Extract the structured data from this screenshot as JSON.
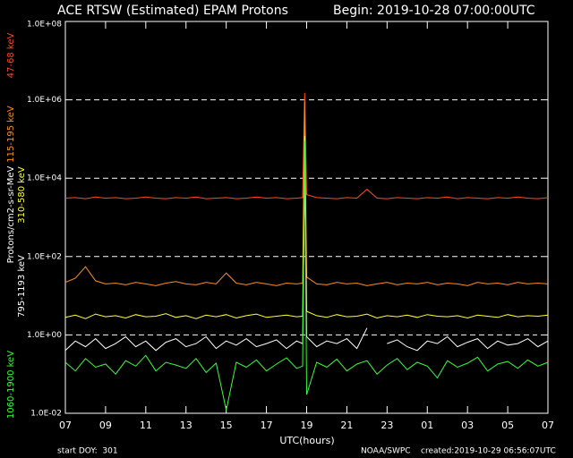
{
  "chart_data": {
    "type": "line",
    "title": "ACE RTSW (Estimated) EPAM Protons",
    "subtitle": "Begin: 2019-10-28 07:00:00UTC",
    "x_label": "UTC(hours)",
    "y_label": "Protons/cm2-s-sr-MeV",
    "annotations": [
      "start DOY:  301",
      "NOAA/SWPC",
      "created:2019-10-29 06:56:07UTC"
    ],
    "log_y": true,
    "grid": true,
    "xlim": [
      0,
      24
    ],
    "xticks": [
      {
        "value": 0,
        "label": "07"
      },
      {
        "value": 2,
        "label": "09"
      },
      {
        "value": 4,
        "label": "11"
      },
      {
        "value": 6,
        "label": "13"
      },
      {
        "value": 8,
        "label": "15"
      },
      {
        "value": 10,
        "label": "17"
      },
      {
        "value": 12,
        "label": "19"
      },
      {
        "value": 14,
        "label": "21"
      },
      {
        "value": 16,
        "label": "23"
      },
      {
        "value": 18,
        "label": "01"
      },
      {
        "value": 20,
        "label": "03"
      },
      {
        "value": 22,
        "label": "05"
      },
      {
        "value": 24,
        "label": "07"
      }
    ],
    "ylim": [
      0.01,
      100000000
    ],
    "yticks": [
      {
        "value": 0.01,
        "label": "1.0E-02"
      },
      {
        "value": 1,
        "label": "1.0E+00"
      },
      {
        "value": 100,
        "label": "1.0E+02"
      },
      {
        "value": 10000,
        "label": "1.0E+04"
      },
      {
        "value": 1000000,
        "label": "1.0E+06"
      },
      {
        "value": 100000000,
        "label": "1.0E+08"
      }
    ],
    "x": [
      0,
      0.5,
      1,
      1.5,
      2,
      2.5,
      3,
      3.5,
      4,
      4.5,
      5,
      5.5,
      6,
      6.5,
      7,
      7.5,
      8,
      8.5,
      9,
      9.5,
      10,
      10.5,
      11,
      11.5,
      11.8,
      11.9,
      12,
      12.5,
      13,
      13.5,
      14,
      14.5,
      15,
      15.5,
      16,
      16.5,
      17,
      17.5,
      18,
      18.5,
      19,
      19.5,
      20,
      20.5,
      21,
      21.5,
      22,
      22.5,
      23,
      23.5,
      24
    ],
    "series": [
      {
        "name": "47-68 keV",
        "color": "#ff4a1c",
        "values": [
          3100,
          3200,
          3000,
          3300,
          3100,
          3200,
          3000,
          3100,
          3300,
          3100,
          3000,
          3200,
          3100,
          3300,
          3000,
          3100,
          3200,
          3000,
          3100,
          3300,
          3100,
          3200,
          3000,
          3100,
          3200,
          1500000,
          3800,
          3200,
          3100,
          3000,
          3200,
          3100,
          5200,
          3100,
          3000,
          3200,
          3100,
          3000,
          3200,
          3100,
          3300,
          3000,
          3200,
          3100,
          3000,
          3200,
          3100,
          3300,
          3100,
          3000,
          3200
        ]
      },
      {
        "name": "115-195 keV",
        "color": "#ff8c1a",
        "values": [
          22,
          28,
          55,
          24,
          20,
          21,
          19,
          22,
          20,
          18,
          21,
          23,
          20,
          19,
          22,
          20,
          38,
          21,
          19,
          22,
          20,
          18,
          21,
          20,
          21,
          900000,
          30,
          20,
          19,
          22,
          20,
          21,
          18,
          20,
          22,
          19,
          21,
          20,
          22,
          19,
          21,
          20,
          18,
          22,
          20,
          21,
          19,
          22,
          20,
          21,
          20
        ]
      },
      {
        "name": "310-580 keV",
        "color": "#ffff33",
        "values": [
          2.8,
          3.2,
          2.6,
          3.4,
          2.9,
          3.1,
          2.7,
          3.3,
          2.9,
          3.0,
          3.5,
          2.8,
          3.1,
          2.6,
          3.2,
          2.9,
          3.3,
          2.7,
          3.1,
          3.4,
          2.8,
          3.0,
          3.2,
          2.9,
          3.0,
          120000,
          4,
          3.1,
          2.8,
          3.3,
          2.9,
          3.0,
          3.4,
          2.7,
          3.1,
          2.9,
          3.2,
          2.8,
          3.3,
          3.0,
          2.9,
          3.1,
          2.7,
          3.2,
          3.0,
          2.8,
          3.3,
          2.9,
          3.1,
          3.0,
          3.2
        ]
      },
      {
        "name": "795-1193 keV",
        "color": "#ffffff",
        "values": [
          0.4,
          0.7,
          0.5,
          0.8,
          0.45,
          0.6,
          0.9,
          0.5,
          0.7,
          0.4,
          0.65,
          0.8,
          0.5,
          0.6,
          0.9,
          0.45,
          0.7,
          0.55,
          0.8,
          0.5,
          0.6,
          0.75,
          0.45,
          0.7,
          0.6,
          15000,
          0.9,
          0.5,
          0.7,
          0.6,
          0.8,
          0.45,
          1.5,
          null,
          0.6,
          0.75,
          0.5,
          0.4,
          0.7,
          0.6,
          0.9,
          0.5,
          0.65,
          0.8,
          0.45,
          0.7,
          0.55,
          0.6,
          0.8,
          0.5,
          0.7
        ]
      },
      {
        "name": "1060-1900 keV",
        "color": "#33ff33",
        "values": [
          0.2,
          0.12,
          0.25,
          0.15,
          0.18,
          0.1,
          0.22,
          0.16,
          0.3,
          0.12,
          0.2,
          0.17,
          0.14,
          0.25,
          0.11,
          0.19,
          0.012,
          0.2,
          0.15,
          0.23,
          0.12,
          0.18,
          0.26,
          0.14,
          0.16,
          90000,
          0.03,
          0.2,
          0.15,
          0.24,
          0.12,
          0.18,
          0.22,
          0.1,
          0.17,
          0.25,
          0.13,
          0.2,
          0.16,
          0.08,
          0.22,
          0.15,
          0.19,
          0.27,
          0.12,
          0.18,
          0.21,
          0.14,
          0.23,
          0.16,
          0.2
        ]
      }
    ]
  }
}
